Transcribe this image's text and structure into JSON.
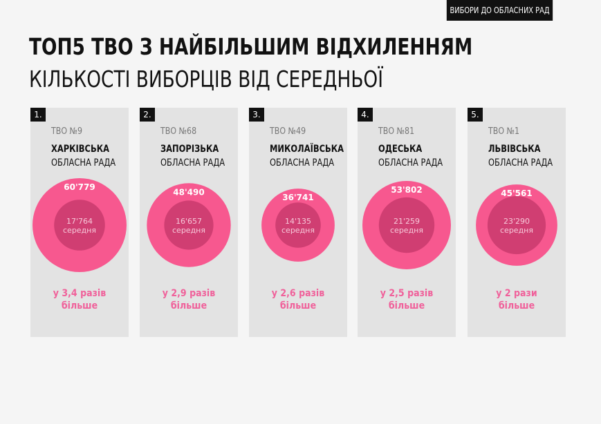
{
  "header": {
    "tag": "ВИБОРИ ДО ОБЛАСНИХ РАД"
  },
  "title": {
    "line1": "ТОП5 ТВО З НАЙБІЛЬШИМ ВІДХИЛЕННЯМ",
    "line2": "КІЛЬКОСТІ ВИБОРЦІВ ВІД СЕРЕДНЬОЇ"
  },
  "colors": {
    "outer": "#f7588f",
    "inner": "#d03e72",
    "ratio": "#f0609a",
    "card": "#e3e3e3"
  },
  "chart_data": {
    "type": "bubble",
    "items": [
      {
        "rank": "1.",
        "tvo": "ТВО №9",
        "region": "ХАРКІВСЬКА",
        "council": "ОБЛАСНА РАДА",
        "value": 60779,
        "value_label": "60'779",
        "avg": 17764,
        "avg_label": "17'764",
        "avg_text": "середня",
        "ratio_line1": "у 3,4 разів",
        "ratio_line2": "більше"
      },
      {
        "rank": "2.",
        "tvo": "ТВО №68",
        "region": "ЗАПОРІЗЬКА",
        "council": "ОБЛАСНА РАДА",
        "value": 48490,
        "value_label": "48'490",
        "avg": 16657,
        "avg_label": "16'657",
        "avg_text": "середня",
        "ratio_line1": "у 2,9 разів",
        "ratio_line2": "більше"
      },
      {
        "rank": "3.",
        "tvo": "ТВО №49",
        "region": "МИКОЛАЇВСЬКА",
        "council": "ОБЛАСНА РАДА",
        "value": 36741,
        "value_label": "36'741",
        "avg": 14135,
        "avg_label": "14'135",
        "avg_text": "середня",
        "ratio_line1": "у 2,6 разів",
        "ratio_line2": "більше"
      },
      {
        "rank": "4.",
        "tvo": "ТВО №81",
        "region": "ОДЕСЬКА",
        "council": "ОБЛАСНА РАДА",
        "value": 53802,
        "value_label": "53'802",
        "avg": 21259,
        "avg_label": "21'259",
        "avg_text": "середня",
        "ratio_line1": "у 2,5 разів",
        "ratio_line2": "більше"
      },
      {
        "rank": "5.",
        "tvo": "ТВО №1",
        "region": "ЛЬВІВСЬКА",
        "council": "ОБЛАСНА РАДА",
        "value": 45561,
        "value_label": "45'561",
        "avg": 23290,
        "avg_label": "23'290",
        "avg_text": "середня",
        "ratio_line1": "у 2 рази",
        "ratio_line2": "більше"
      }
    ]
  }
}
